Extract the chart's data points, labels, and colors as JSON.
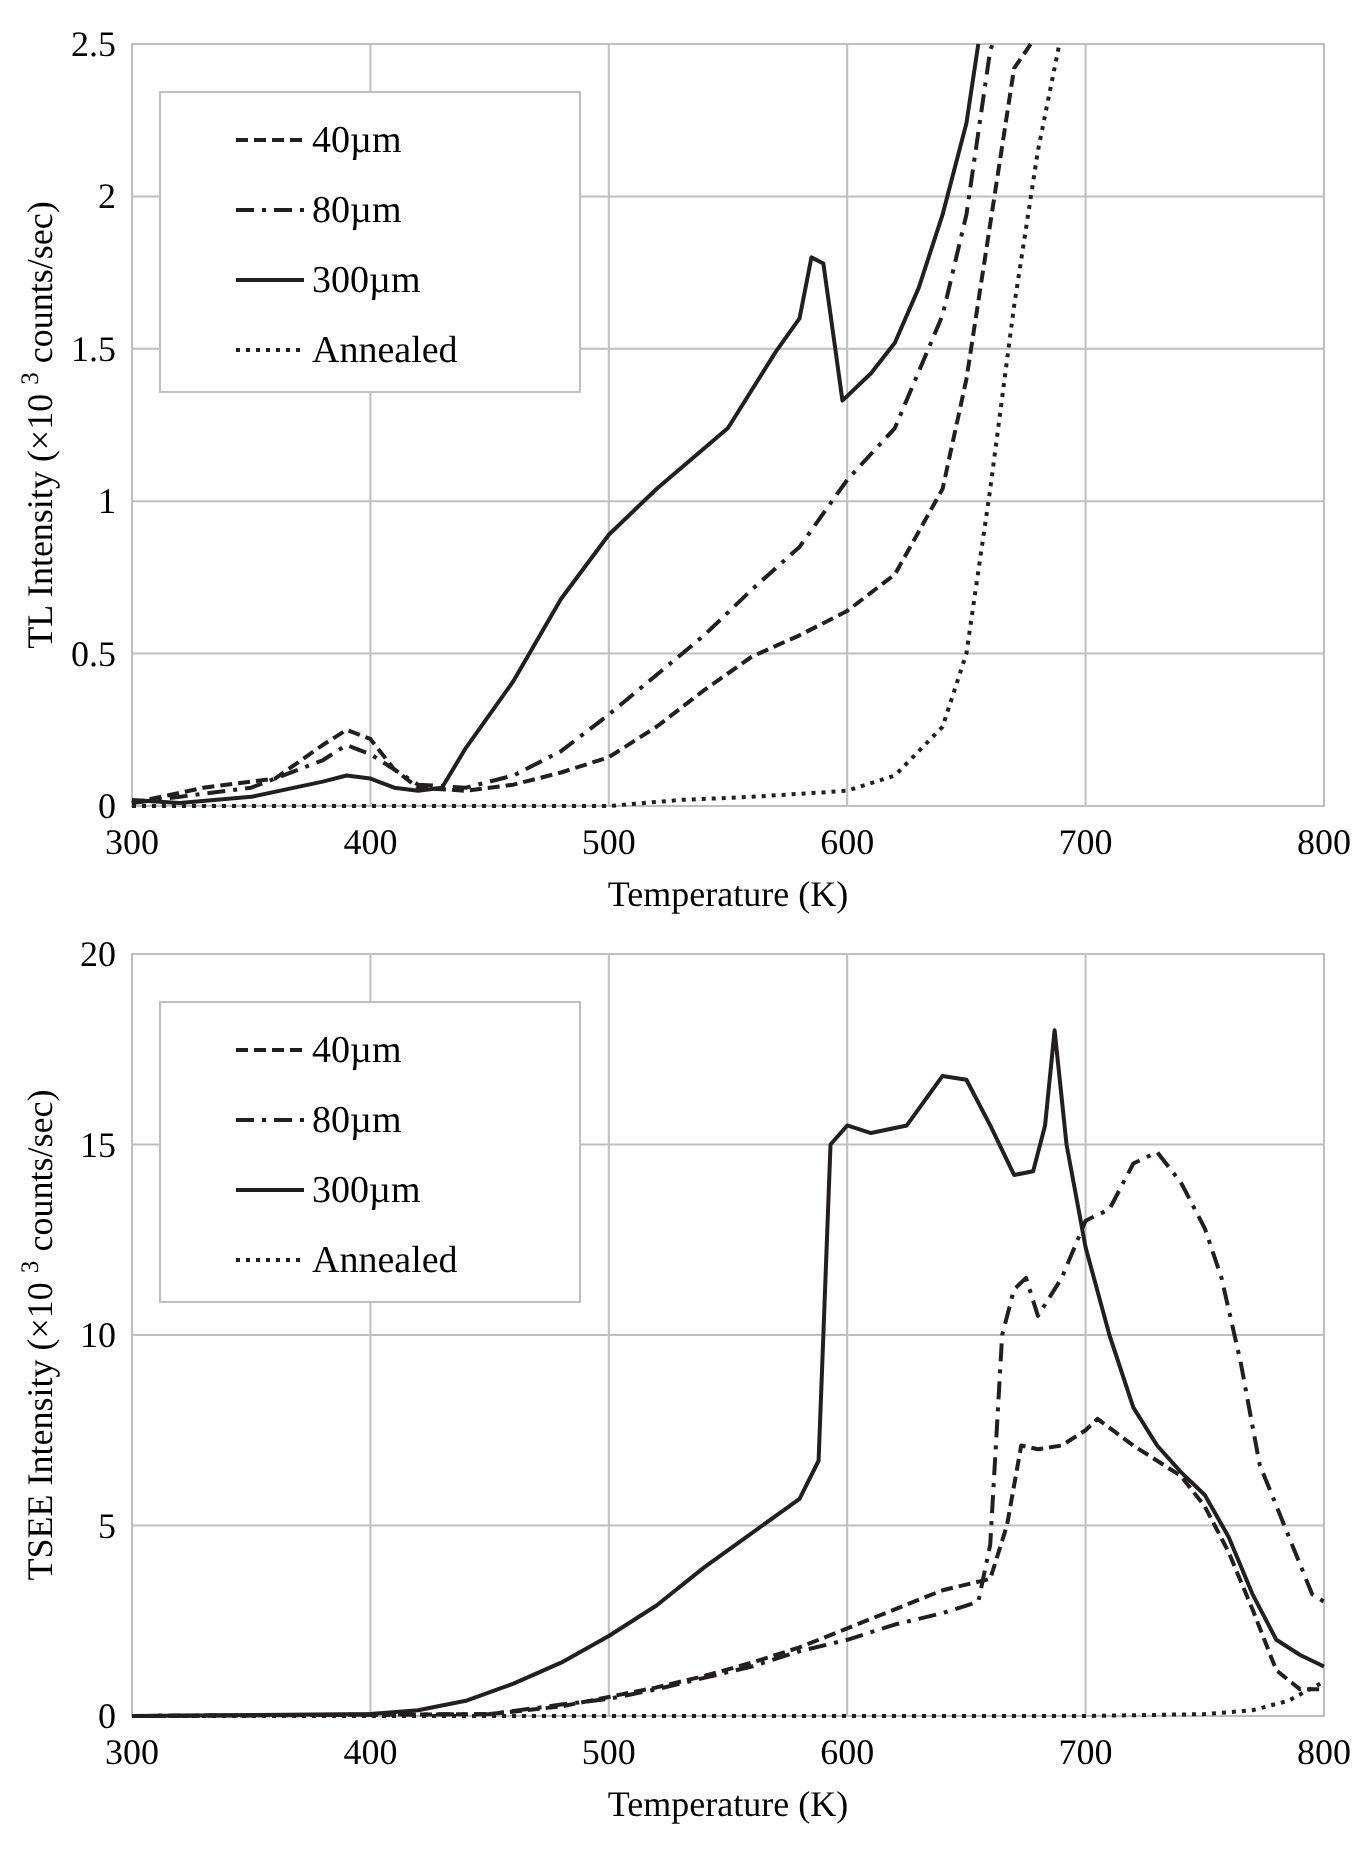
{
  "chart_data": [
    {
      "type": "line",
      "xlabel": "Temperature  (K)",
      "ylabel": "TL Intensity (×10 $^{3}$ counts/sec)",
      "xlim": [
        300,
        800
      ],
      "ylim": [
        0,
        2.5
      ],
      "xticks": [
        300,
        400,
        500,
        600,
        700,
        800
      ],
      "yticks": [
        0,
        0.5,
        1,
        1.5,
        2,
        2.5
      ],
      "grid": true,
      "legend": "top left",
      "series": [
        {
          "name": "40µm",
          "color": "#231f20",
          "line_style": "dashed",
          "x": [
            300,
            330,
            360,
            380,
            390,
            400,
            410,
            420,
            440,
            460,
            480,
            500,
            520,
            540,
            560,
            580,
            600,
            620,
            630,
            640,
            650,
            660,
            670,
            677
          ],
          "values": [
            0.01,
            0.06,
            0.09,
            0.2,
            0.25,
            0.22,
            0.12,
            0.06,
            0.05,
            0.07,
            0.11,
            0.16,
            0.26,
            0.38,
            0.49,
            0.56,
            0.64,
            0.76,
            0.9,
            1.04,
            1.4,
            1.91,
            2.42,
            2.5
          ]
        },
        {
          "name": "80µm",
          "color": "#231f20",
          "line_style": "dashdot",
          "x": [
            300,
            350,
            380,
            390,
            400,
            420,
            440,
            460,
            480,
            500,
            520,
            540,
            560,
            580,
            600,
            620,
            640,
            650,
            660,
            661
          ],
          "values": [
            0.01,
            0.06,
            0.15,
            0.2,
            0.17,
            0.07,
            0.06,
            0.1,
            0.18,
            0.3,
            0.43,
            0.56,
            0.71,
            0.85,
            1.07,
            1.24,
            1.61,
            1.94,
            2.48,
            2.5
          ]
        },
        {
          "name": "300µm",
          "color": "#231f20",
          "line_style": "solid",
          "x": [
            300,
            320,
            350,
            380,
            390,
            400,
            410,
            420,
            430,
            440,
            460,
            480,
            500,
            520,
            550,
            570,
            580,
            585,
            590,
            595,
            598,
            610,
            620,
            630,
            640,
            650,
            655
          ],
          "values": [
            0.02,
            0.01,
            0.03,
            0.08,
            0.1,
            0.09,
            0.06,
            0.05,
            0.06,
            0.19,
            0.41,
            0.68,
            0.89,
            1.04,
            1.24,
            1.49,
            1.6,
            1.8,
            1.78,
            1.5,
            1.33,
            1.42,
            1.52,
            1.7,
            1.94,
            2.24,
            2.5
          ]
        },
        {
          "name": "Annealed",
          "color": "#231f20",
          "line_style": "dotted",
          "x": [
            300,
            500,
            530,
            560,
            600,
            620,
            640,
            650,
            660,
            670,
            680,
            689
          ],
          "values": [
            0,
            0,
            0.02,
            0.03,
            0.05,
            0.1,
            0.26,
            0.5,
            1.04,
            1.64,
            2.15,
            2.5
          ]
        }
      ]
    },
    {
      "type": "line",
      "xlabel": "Temperature  (K)",
      "ylabel": "TSEE Intensity (×10 $^{3}$ counts/sec)",
      "xlim": [
        300,
        800
      ],
      "ylim": [
        0,
        20
      ],
      "xticks": [
        300,
        400,
        500,
        600,
        700,
        800
      ],
      "yticks": [
        0,
        5,
        10,
        15,
        20
      ],
      "grid": true,
      "legend": "top left",
      "series": [
        {
          "name": "40µm",
          "color": "#231f20",
          "line_style": "dashed",
          "x": [
            300,
            450,
            480,
            500,
            520,
            540,
            560,
            580,
            600,
            620,
            640,
            660,
            667,
            673,
            680,
            690,
            700,
            705,
            720,
            740,
            750,
            760,
            770,
            780,
            790,
            800
          ],
          "values": [
            0,
            0.05,
            0.25,
            0.5,
            0.75,
            1.05,
            1.4,
            1.8,
            2.3,
            2.8,
            3.3,
            3.6,
            5,
            7.1,
            7,
            7.1,
            7.5,
            7.8,
            7.1,
            6.3,
            5.5,
            4.3,
            2.8,
            1.2,
            0.7,
            0.7
          ]
        },
        {
          "name": "80µm",
          "color": "#231f20",
          "line_style": "dashdot",
          "x": [
            300,
            450,
            480,
            500,
            520,
            540,
            560,
            580,
            600,
            620,
            640,
            655,
            660,
            665,
            670,
            675,
            680,
            690,
            700,
            710,
            720,
            730,
            740,
            750,
            757,
            765,
            773,
            784,
            795,
            800
          ],
          "values": [
            0,
            0.05,
            0.3,
            0.45,
            0.7,
            1,
            1.3,
            1.7,
            2,
            2.4,
            2.7,
            3,
            4.5,
            10,
            11.2,
            11.5,
            10.5,
            11.5,
            13,
            13.3,
            14.5,
            14.8,
            14,
            12.8,
            11.5,
            9.3,
            6.6,
            4.9,
            3.2,
            3
          ]
        },
        {
          "name": "300µm",
          "color": "#231f20",
          "line_style": "solid",
          "x": [
            300,
            400,
            420,
            440,
            460,
            480,
            500,
            520,
            540,
            560,
            580,
            588,
            590,
            593,
            600,
            610,
            625,
            640,
            650,
            660,
            670,
            678,
            683,
            687,
            692,
            700,
            710,
            720,
            730,
            740,
            750,
            760,
            770,
            780,
            790,
            800
          ],
          "values": [
            0,
            0.05,
            0.15,
            0.4,
            0.85,
            1.4,
            2.1,
            2.9,
            3.9,
            4.8,
            5.7,
            6.7,
            10,
            15,
            15.5,
            15.3,
            15.5,
            16.8,
            16.7,
            15.5,
            14.2,
            14.3,
            15.5,
            18,
            15,
            12.3,
            10,
            8.1,
            7.1,
            6.4,
            5.8,
            4.7,
            3.2,
            2,
            1.6,
            1.3
          ]
        },
        {
          "name": "Annealed",
          "color": "#231f20",
          "line_style": "dotted",
          "x": [
            300,
            700,
            750,
            770,
            785,
            800
          ],
          "values": [
            0,
            0,
            0.05,
            0.15,
            0.4,
            0.9
          ]
        }
      ]
    }
  ]
}
